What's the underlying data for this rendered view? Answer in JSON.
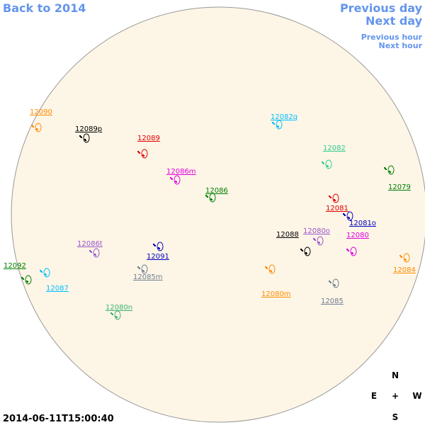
{
  "navigation": {
    "back": "Back to 2014",
    "previous_day": "Previous day",
    "next_day": "Next day",
    "previous_hour": "Previous hour",
    "next_hour": "Next hour"
  },
  "regions": [
    {
      "label": "12090",
      "color": "#ff8c00"
    },
    {
      "label": "12089p",
      "color": "#000000"
    },
    {
      "label": "12089",
      "color": "#e00000"
    },
    {
      "label": "12082q",
      "color": "#00bfff"
    },
    {
      "label": "12082",
      "color": "#2fcf8f"
    },
    {
      "label": "12086m",
      "color": "#e000e0"
    },
    {
      "label": "12086",
      "color": "#008000"
    },
    {
      "label": "12079",
      "color": "#008000"
    },
    {
      "label": "12081",
      "color": "#e00000"
    },
    {
      "label": "12081o",
      "color": "#0000c0"
    },
    {
      "label": "12088",
      "color": "#000000"
    },
    {
      "label": "12080o",
      "color": "#9955cc"
    },
    {
      "label": "12080",
      "color": "#e000e0"
    },
    {
      "label": "12086t",
      "color": "#9955cc"
    },
    {
      "label": "12091",
      "color": "#0000c0"
    },
    {
      "label": "12092",
      "color": "#008000"
    },
    {
      "label": "12084",
      "color": "#ff8c00"
    },
    {
      "label": "12087",
      "color": "#00bfff"
    },
    {
      "label": "12085m",
      "color": "#708090"
    },
    {
      "label": "12080m",
      "color": "#ff8c00"
    },
    {
      "label": "12085",
      "color": "#708090"
    },
    {
      "label": "12080n",
      "color": "#3cb371"
    }
  ],
  "timestamp": "2014-06-11T15:00:40",
  "compass": {
    "north": "N",
    "east": "E",
    "center": "+",
    "west": "W",
    "south": "S"
  }
}
